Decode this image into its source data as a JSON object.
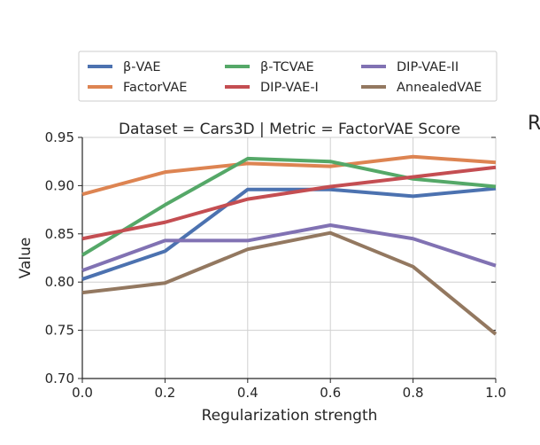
{
  "chart_data": {
    "type": "line",
    "title": "Dataset = Cars3D | Metric = FactorVAE Score",
    "clipped_text": "R",
    "xlabel": "Regularization strength",
    "ylabel": "Value",
    "x": [
      0.0,
      0.2,
      0.4,
      0.6,
      0.8,
      1.0
    ],
    "xlim": [
      0.0,
      1.0
    ],
    "ylim": [
      0.7,
      0.95
    ],
    "xticks": [
      "0.0",
      "0.2",
      "0.4",
      "0.6",
      "0.8",
      "1.0"
    ],
    "yticks": [
      "0.70",
      "0.75",
      "0.80",
      "0.85",
      "0.90",
      "0.95"
    ],
    "grid": true,
    "legend_placement": "top, above plot, 3 columns",
    "series": [
      {
        "name": "β-VAE",
        "color": "#4c72b0",
        "values": [
          0.803,
          0.832,
          0.896,
          0.896,
          0.889,
          0.897
        ]
      },
      {
        "name": "FactorVAE",
        "color": "#dd8452",
        "values": [
          0.891,
          0.914,
          0.923,
          0.92,
          0.93,
          0.924
        ]
      },
      {
        "name": "β-TCVAE",
        "color": "#55a868",
        "values": [
          0.828,
          0.88,
          0.928,
          0.925,
          0.907,
          0.899
        ]
      },
      {
        "name": "DIP-VAE-I",
        "color": "#c44e52",
        "values": [
          0.845,
          0.862,
          0.886,
          0.899,
          0.909,
          0.919
        ]
      },
      {
        "name": "DIP-VAE-II",
        "color": "#8172b3",
        "values": [
          0.812,
          0.843,
          0.843,
          0.859,
          0.845,
          0.817
        ]
      },
      {
        "name": "AnnealedVAE",
        "color": "#937860",
        "values": [
          0.789,
          0.799,
          0.834,
          0.851,
          0.816,
          0.746
        ]
      }
    ]
  }
}
